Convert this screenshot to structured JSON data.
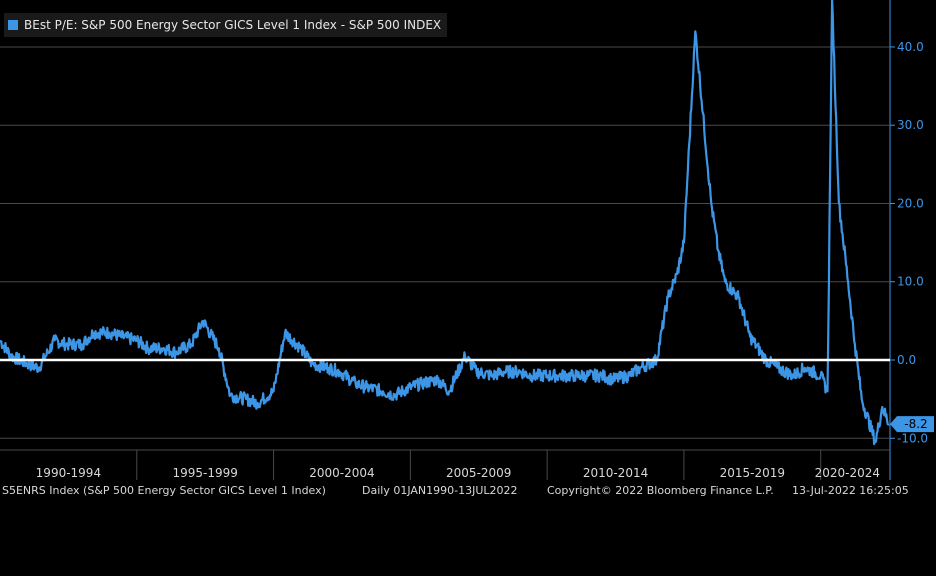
{
  "chart_data": {
    "type": "line",
    "title": "",
    "legend": {
      "position": "top-left",
      "entries": [
        "BEst P/E: S&P 500 Energy Sector GICS Level 1 Index - S&P 500 INDEX"
      ]
    },
    "xlabel": "",
    "ylabel": "",
    "x_range": [
      "1990-01-01",
      "2022-07-13"
    ],
    "x_tick_labels": [
      "1990-1994",
      "1995-1999",
      "2000-2004",
      "2005-2009",
      "2010-2014",
      "2015-2019",
      "2020-2024"
    ],
    "y_axis_side": "right",
    "y_ticks": [
      40,
      30,
      20,
      10,
      0,
      -10
    ],
    "y_tick_labels": [
      "40.0",
      "30.0",
      "20.0",
      "10.0",
      "0.0",
      "-10.0"
    ],
    "ylim": [
      -11.5,
      46
    ],
    "grid": true,
    "zero_line": true,
    "last_value": -8.2,
    "last_value_label": "-8.2",
    "series": [
      {
        "name": "BEst P/E: S&P 500 Energy Sector GICS Level 1 Index - S&P 500 INDEX",
        "color": "#3d95e6",
        "x": [
          "1990-01",
          "1990-06",
          "1991-01",
          "1991-06",
          "1992-01",
          "1992-06",
          "1993-01",
          "1993-06",
          "1994-01",
          "1994-06",
          "1995-01",
          "1995-06",
          "1996-01",
          "1996-06",
          "1997-01",
          "1997-06",
          "1998-01",
          "1998-06",
          "1999-01",
          "1999-06",
          "2000-01",
          "2000-06",
          "2001-01",
          "2001-06",
          "2002-01",
          "2002-06",
          "2003-01",
          "2003-06",
          "2004-01",
          "2004-06",
          "2005-01",
          "2005-06",
          "2006-01",
          "2006-06",
          "2007-01",
          "2007-06",
          "2008-01",
          "2008-06",
          "2009-01",
          "2009-06",
          "2010-01",
          "2010-06",
          "2011-01",
          "2011-06",
          "2012-01",
          "2012-06",
          "2013-01",
          "2013-06",
          "2014-01",
          "2014-06",
          "2014-10",
          "2015-01",
          "2015-06",
          "2016-01",
          "2016-04",
          "2016-07",
          "2017-01",
          "2017-06",
          "2018-01",
          "2018-06",
          "2019-01",
          "2019-06",
          "2020-01",
          "2020-04",
          "2020-06",
          "2020-09",
          "2021-01",
          "2021-04",
          "2021-07",
          "2022-01",
          "2022-04",
          "2022-07"
        ],
        "values": [
          2.5,
          0.5,
          -0.5,
          -1.0,
          2.5,
          2.0,
          2.0,
          3.5,
          3.5,
          3.0,
          2.5,
          1.5,
          1.5,
          1.0,
          2.0,
          5.0,
          1.5,
          -4.5,
          -5.0,
          -5.5,
          -4.0,
          3.5,
          1.5,
          -0.5,
          -1.0,
          -1.5,
          -3.0,
          -3.5,
          -4.0,
          -4.5,
          -3.5,
          -3.0,
          -2.5,
          -4.0,
          0.5,
          -1.5,
          -2.0,
          -1.5,
          -1.5,
          -2.0,
          -2.0,
          -2.0,
          -2.0,
          -2.0,
          -2.0,
          -2.5,
          -2.0,
          -1.0,
          0.0,
          8.0,
          11.0,
          15.0,
          42.0,
          20.0,
          14.0,
          10.0,
          8.0,
          3.0,
          0.0,
          -1.0,
          -2.0,
          -1.0,
          -2.0,
          -4.0,
          46.0,
          20.0,
          10.0,
          2.0,
          -5.0,
          -10.5,
          -6.0,
          -8.2
        ]
      }
    ]
  },
  "footer": {
    "ticker": "S5ENRS Index (S&P 500 Energy Sector GICS Level 1 Index)",
    "range": "Daily 01JAN1990-13JUL2022",
    "copyright": "Copyright© 2022 Bloomberg Finance L.P.",
    "timestamp": "13-Jul-2022 16:25:05"
  },
  "colors": {
    "background": "#000000",
    "series": "#3d95e6",
    "grid": "#4a4a4a",
    "zero_line": "#ffffff",
    "axis_text": "#3d95e6",
    "x_label_text": "#d8d8d8"
  }
}
